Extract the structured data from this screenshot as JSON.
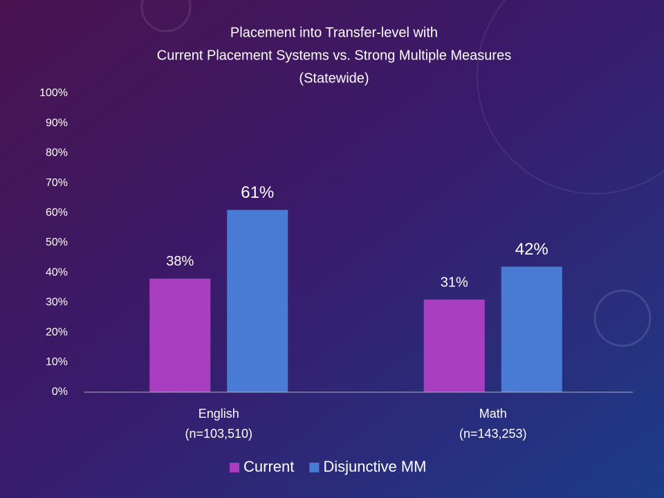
{
  "chart_data": {
    "type": "bar",
    "title": [
      "Placement into Transfer-level with",
      "Current Placement Systems vs. Strong Multiple Measures",
      "(Statewide)"
    ],
    "categories": [
      [
        "English",
        "(n=103,510)"
      ],
      [
        "Math",
        "(n=143,253)"
      ]
    ],
    "series": [
      {
        "name": "Current",
        "color": "#a93fc0",
        "values": [
          38,
          31
        ],
        "value_labels": [
          "38%",
          "31%"
        ]
      },
      {
        "name": "Disjunctive MM",
        "color": "#4a7bd4",
        "values": [
          61,
          42
        ],
        "value_labels": [
          "61%",
          "42%"
        ]
      }
    ],
    "ylim": [
      0,
      100
    ],
    "yticks": [
      {
        "value": 0,
        "label": "0%"
      },
      {
        "value": 10,
        "label": "10%"
      },
      {
        "value": 20,
        "label": "20%"
      },
      {
        "value": 30,
        "label": "30%"
      },
      {
        "value": 40,
        "label": "40%"
      },
      {
        "value": 50,
        "label": "50%"
      },
      {
        "value": 60,
        "label": "60%"
      },
      {
        "value": 70,
        "label": "70%"
      },
      {
        "value": 80,
        "label": "80%"
      },
      {
        "value": 90,
        "label": "90%"
      },
      {
        "value": 100,
        "label": "100%"
      }
    ],
    "grid": false,
    "legend": "bottom"
  }
}
